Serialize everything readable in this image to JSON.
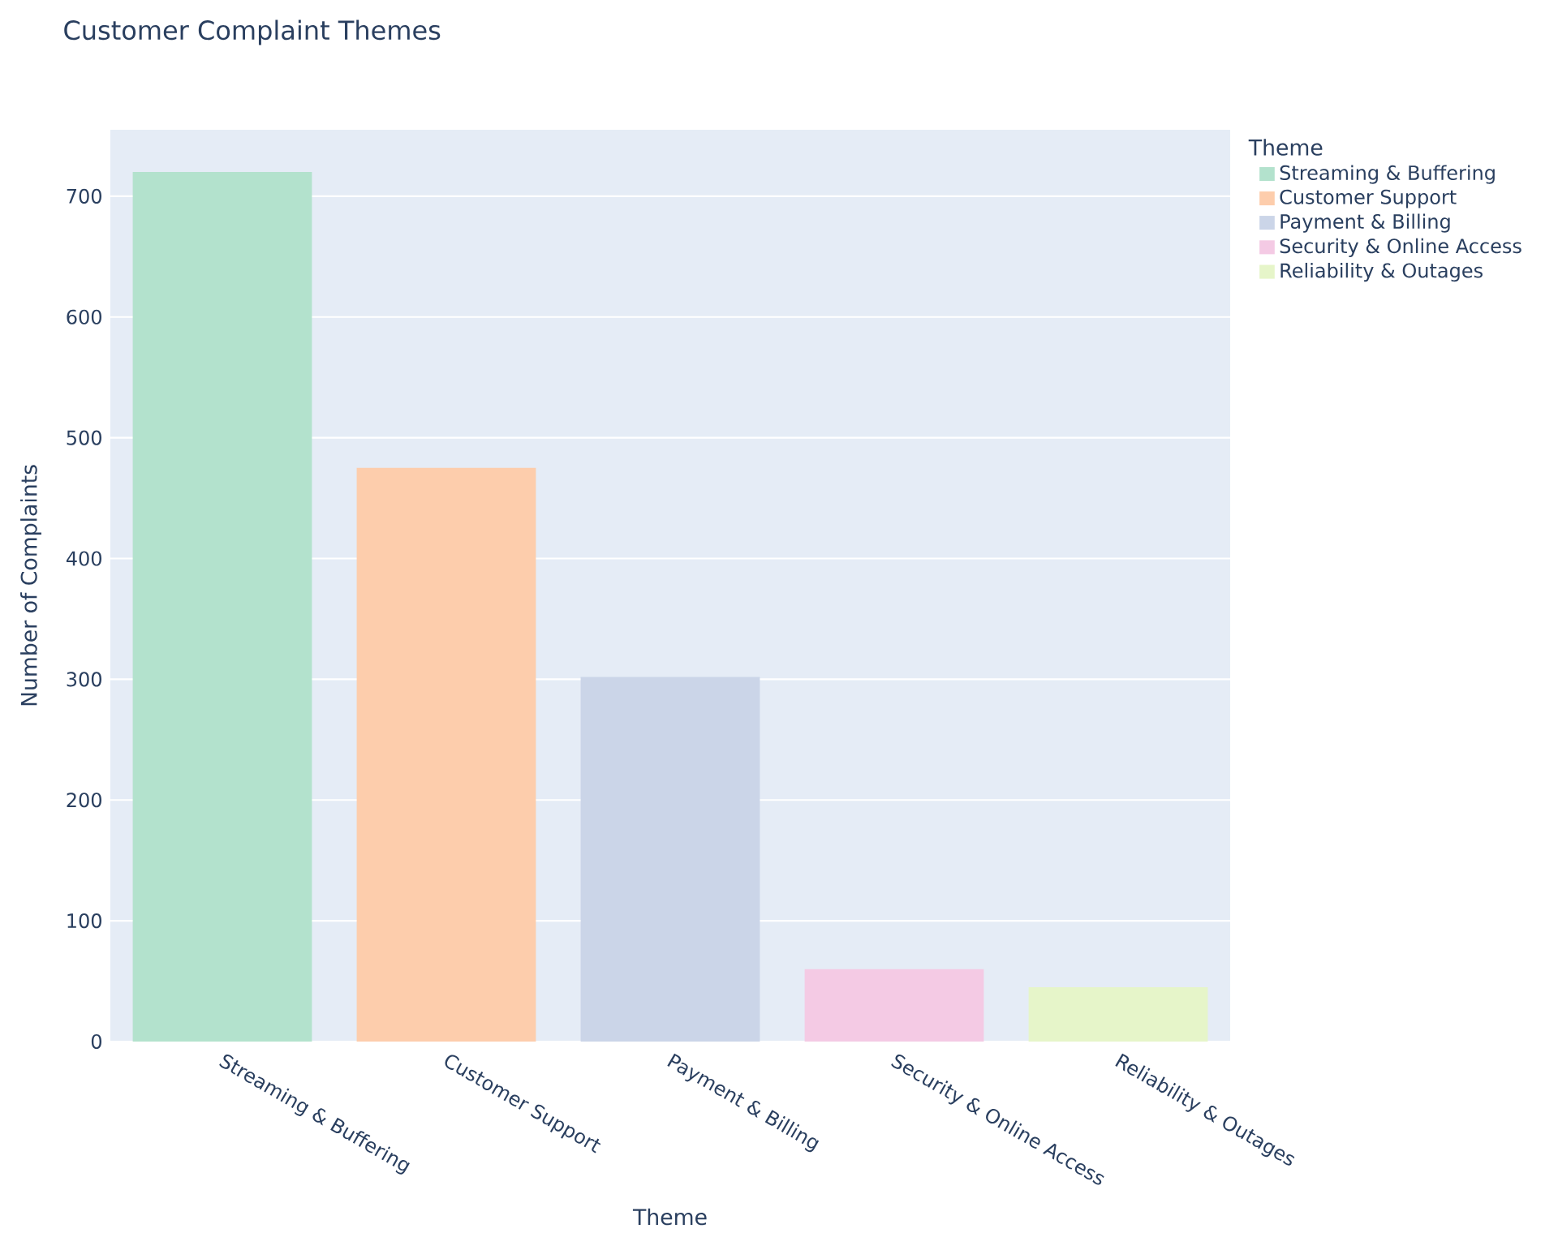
{
  "chart_data": {
    "type": "bar",
    "title": "Customer Complaint Themes",
    "xlabel": "Theme",
    "ylabel": "Number of Complaints",
    "legend_title": "Theme",
    "categories": [
      "Streaming & Buffering",
      "Customer Support",
      "Payment & Billing",
      "Security & Online Access",
      "Reliability & Outages"
    ],
    "series": [
      {
        "name": "Streaming & Buffering",
        "color": "#b3e2cd",
        "values": [
          720,
          null,
          null,
          null,
          null
        ]
      },
      {
        "name": "Customer Support",
        "color": "#fdcdac",
        "values": [
          null,
          475,
          null,
          null,
          null
        ]
      },
      {
        "name": "Payment & Billing",
        "color": "#cbd5e8",
        "values": [
          null,
          null,
          302,
          null,
          null
        ]
      },
      {
        "name": "Security & Online Access",
        "color": "#f4cae4",
        "values": [
          null,
          null,
          null,
          60,
          null
        ]
      },
      {
        "name": "Reliability & Outages",
        "color": "#e6f5c9",
        "values": [
          null,
          null,
          null,
          null,
          45
        ]
      }
    ],
    "ylim": [
      0,
      755
    ],
    "yticks": [
      0,
      100,
      200,
      300,
      400,
      500,
      600,
      700
    ],
    "grid": "y",
    "legend": "top right"
  }
}
